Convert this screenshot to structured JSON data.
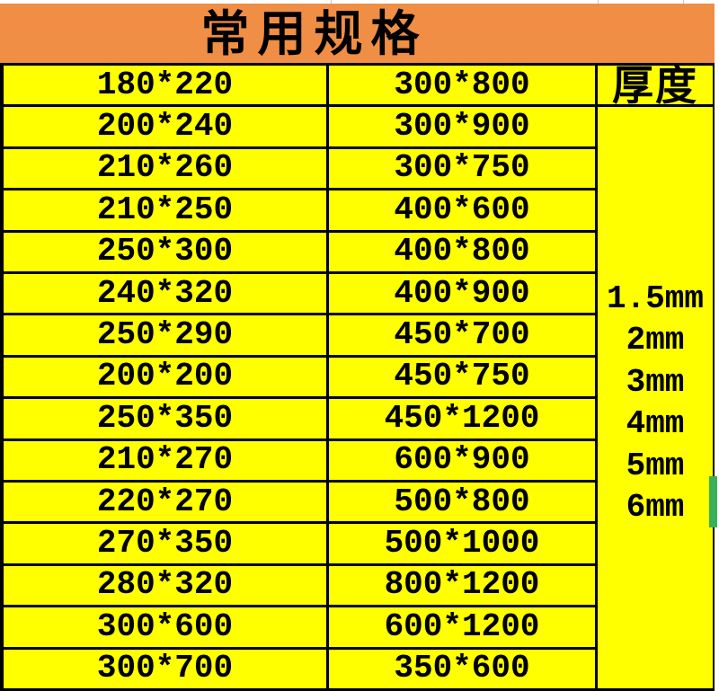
{
  "title": "常用规格",
  "colors": {
    "banner_orange": "#ef8e44",
    "cell_yellow": "#ffff00",
    "border_black": "#000000",
    "marker_green": "#3bb05a"
  },
  "table": {
    "thickness_header": "厚度",
    "rows": [
      {
        "c1": "180*220",
        "c2": "300*800"
      },
      {
        "c1": "200*240",
        "c2": "300*900"
      },
      {
        "c1": "210*260",
        "c2": "300*750"
      },
      {
        "c1": "210*250",
        "c2": "400*600"
      },
      {
        "c1": "250*300",
        "c2": "400*800"
      },
      {
        "c1": "240*320",
        "c2": "400*900"
      },
      {
        "c1": "250*290",
        "c2": "450*700"
      },
      {
        "c1": "200*200",
        "c2": "450*750"
      },
      {
        "c1": "250*350",
        "c2": "450*1200"
      },
      {
        "c1": "210*270",
        "c2": "600*900"
      },
      {
        "c1": "220*270",
        "c2": "500*800"
      },
      {
        "c1": "270*350",
        "c2": "500*1000"
      },
      {
        "c1": "280*320",
        "c2": "800*1200"
      },
      {
        "c1": "300*600",
        "c2": "600*1200"
      },
      {
        "c1": "300*700",
        "c2": "350*600"
      }
    ],
    "thickness_values": [
      "1.5mm",
      "2mm",
      "3mm",
      "4mm",
      "5mm",
      "6mm"
    ]
  }
}
